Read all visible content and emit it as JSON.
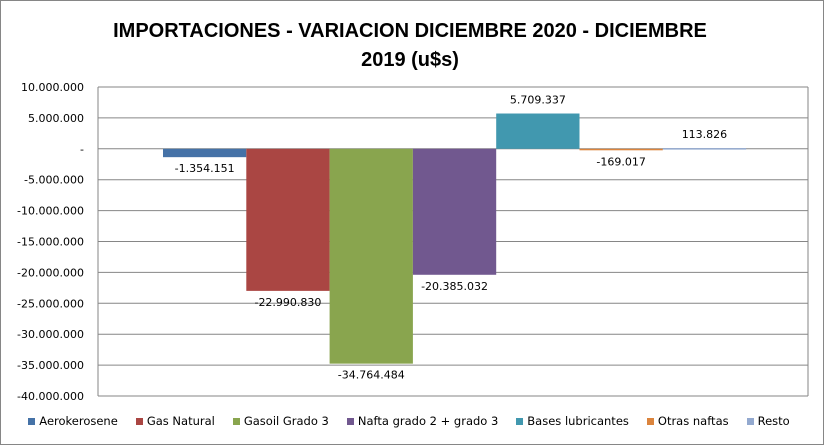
{
  "chart_data": {
    "type": "bar",
    "title_line1": "IMPORTACIONES - VARIACION DICIEMBRE 2020 - DICIEMBRE",
    "title_line2": "2019 (u$s)",
    "xlabel": "",
    "ylabel": "",
    "ylim": [
      -40000000,
      10000000
    ],
    "yticks": [
      10000000,
      5000000,
      0,
      -5000000,
      -10000000,
      -15000000,
      -20000000,
      -25000000,
      -30000000,
      -35000000,
      -40000000
    ],
    "ytick_labels": [
      "10.000.000",
      "5.000.000",
      "-",
      "-5.000.000",
      "-10.000.000",
      "-15.000.000",
      "-20.000.000",
      "-25.000.000",
      "-30.000.000",
      "-35.000.000",
      "-40.000.000"
    ],
    "grid": true,
    "legend_position": "bottom",
    "series": [
      {
        "name": "Aerokerosene",
        "value": -1354151,
        "label": "-1.354.151",
        "color": "#4572A7"
      },
      {
        "name": "Gas Natural",
        "value": -22990830,
        "label": "-22.990.830",
        "color": "#AA4643"
      },
      {
        "name": "Gasoil Grado 3",
        "value": -34764484,
        "label": "-34.764.484",
        "color": "#89A54E"
      },
      {
        "name": "Nafta grado 2 + grado 3",
        "value": -20385032,
        "label": "-20.385.032",
        "color": "#71588F"
      },
      {
        "name": "Bases lubricantes",
        "value": 5709337,
        "label": "5.709.337",
        "color": "#4198AF"
      },
      {
        "name": "Otras naftas",
        "value": -169017,
        "label": "-169.017",
        "color": "#DB843D"
      },
      {
        "name": "Resto",
        "value": 113826,
        "label": "113.826",
        "color": "#93A9CF"
      }
    ]
  }
}
